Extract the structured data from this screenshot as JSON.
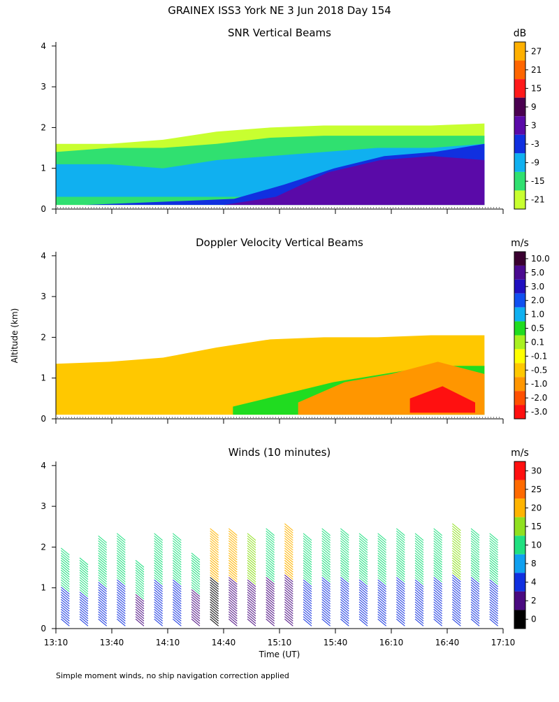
{
  "figure": {
    "title": "GRAINEX ISS3 York NE   3 Jun 2018 Day 154",
    "ylabel": "Altitude (km)",
    "xlabel": "Time (UT)",
    "footnote": "Simple moment winds, no ship navigation correction applied"
  },
  "chart_data": [
    {
      "type": "heatmap",
      "title": "SNR Vertical Beams",
      "unit": "dB",
      "x_ticks": [
        "13:10",
        "13:40",
        "14:10",
        "14:40",
        "15:10",
        "15:40",
        "16:10",
        "16:40",
        "17:10"
      ],
      "xlim": [
        "13:10",
        "17:10"
      ],
      "ylim": [
        0,
        4.1
      ],
      "y_ticks": [
        "0",
        "1",
        "2",
        "3",
        "4"
      ],
      "colorbar": {
        "labels": [
          "27",
          "21",
          "15",
          "9",
          "3",
          "-3",
          "-9",
          "-15",
          "-21"
        ],
        "colors": [
          "#ffb000",
          "#ff6600",
          "#ff1a1a",
          "#4a0050",
          "#5a0aa8",
          "#1030e0",
          "#10b0f0",
          "#30e070",
          "#c8ff30"
        ]
      },
      "layers": [
        {
          "from_time": "13:10",
          "to_time": "17:00",
          "bottom_km": [
            0.1,
            0.1,
            0.1,
            0.1,
            0.1,
            0.1,
            0.1,
            0.1,
            0.1
          ],
          "top_km": [
            1.6,
            1.6,
            1.7,
            1.9,
            2.0,
            2.05,
            2.05,
            2.05,
            2.1
          ],
          "color": "#c8ff30"
        },
        {
          "from_time": "13:10",
          "to_time": "17:00",
          "bottom_km": [
            0.1,
            0.1,
            0.1,
            0.1,
            0.1,
            0.1,
            0.1,
            0.1,
            0.1
          ],
          "top_km": [
            1.4,
            1.5,
            1.5,
            1.6,
            1.75,
            1.8,
            1.8,
            1.8,
            1.8
          ],
          "color": "#30e070"
        },
        {
          "from_time": "13:10",
          "to_time": "17:00",
          "bottom_km": [
            0.3,
            0.3,
            0.3,
            0.3,
            0.3,
            0.3,
            0.3,
            0.3,
            0.3
          ],
          "top_km": [
            1.1,
            1.1,
            1.0,
            1.2,
            1.3,
            1.4,
            1.5,
            1.5,
            1.6
          ],
          "color": "#10b0f0"
        },
        {
          "from_time": "13:25",
          "to_time": "17:00",
          "bottom_km": [
            0.1,
            0.1,
            0.1,
            0.1,
            0.1,
            0.1,
            0.1,
            0.1,
            0.1
          ],
          "top_km": [
            0.1,
            0.15,
            0.2,
            0.25,
            0.6,
            1.0,
            1.3,
            1.4,
            1.6
          ],
          "color": "#1030e0"
        },
        {
          "from_time": "14:40",
          "to_time": "17:00",
          "bottom_km": [
            0.1,
            0.1,
            0.1,
            0.1,
            0.1,
            0.1
          ],
          "top_km": [
            0.1,
            0.3,
            0.9,
            1.2,
            1.3,
            1.2
          ],
          "color": "#5a0aa8"
        }
      ]
    },
    {
      "type": "heatmap",
      "title": "Doppler Velocity Vertical Beams",
      "unit": "m/s",
      "x_ticks": [
        "13:10",
        "13:40",
        "14:10",
        "14:40",
        "15:10",
        "15:40",
        "16:10",
        "16:40",
        "17:10"
      ],
      "xlim": [
        "13:10",
        "17:10"
      ],
      "ylim": [
        0,
        4.1
      ],
      "y_ticks": [
        "0",
        "1",
        "2",
        "3",
        "4"
      ],
      "colorbar": {
        "labels": [
          "10.0",
          "5.0",
          "3.0",
          "2.0",
          "1.0",
          "0.5",
          "0.1",
          "-0.1",
          "-0.5",
          "-1.0",
          "-2.0",
          "-3.0"
        ],
        "colors": [
          "#3a0030",
          "#4a0a90",
          "#2010c0",
          "#1050f0",
          "#10b0f0",
          "#20dc20",
          "#a8f020",
          "#ffff00",
          "#ffc800",
          "#ff9600",
          "#ff5000",
          "#ff1010"
        ]
      },
      "layers": [
        {
          "from_time": "13:10",
          "to_time": "17:00",
          "bottom_km": [
            0.1,
            0.1,
            0.1,
            0.1,
            0.1,
            0.1,
            0.1,
            0.1,
            0.1
          ],
          "top_km": [
            1.35,
            1.4,
            1.5,
            1.75,
            1.95,
            2.0,
            2.0,
            2.05,
            2.05
          ],
          "color": "#ffc800"
        },
        {
          "from_time": "14:45",
          "to_time": "17:00",
          "bottom_km": [
            0.1,
            0.1,
            0.1,
            0.1,
            0.1,
            0.1
          ],
          "top_km": [
            0.3,
            0.6,
            0.9,
            1.1,
            1.3,
            1.3
          ],
          "color": "#20dc20"
        },
        {
          "from_time": "15:20",
          "to_time": "17:00",
          "bottom_km": [
            0.1,
            0.1,
            0.1,
            0.1,
            0.1
          ],
          "top_km": [
            0.4,
            0.9,
            1.1,
            1.4,
            1.1
          ],
          "color": "#ff9600"
        },
        {
          "from_time": "16:20",
          "to_time": "16:55",
          "bottom_km": [
            0.15,
            0.15,
            0.15
          ],
          "top_km": [
            0.5,
            0.8,
            0.4
          ],
          "color": "#ff1010"
        }
      ]
    },
    {
      "type": "scatter",
      "title": "Winds (10 minutes)",
      "unit": "m/s",
      "x_ticks": [
        "13:10",
        "13:40",
        "14:10",
        "14:40",
        "15:10",
        "15:40",
        "16:10",
        "16:40",
        "17:10"
      ],
      "xlim": [
        "13:10",
        "17:10"
      ],
      "ylim": [
        0,
        4.1
      ],
      "y_ticks": [
        "0",
        "1",
        "2",
        "3",
        "4"
      ],
      "colorbar": {
        "labels": [
          "30",
          "25",
          "20",
          "15",
          "10",
          "8",
          "4",
          "2",
          "0"
        ],
        "colors": [
          "#ff1010",
          "#ff6a00",
          "#ffb400",
          "#90e020",
          "#20e080",
          "#10a0f0",
          "#1030e0",
          "#4a0a80",
          "#000000"
        ]
      },
      "profiles": [
        {
          "time": "13:15",
          "top_km": 1.9,
          "color_low": "#1030e0",
          "color_high": "#20e080"
        },
        {
          "time": "13:25",
          "top_km": 1.7,
          "color_low": "#1030e0",
          "color_high": "#20e080"
        },
        {
          "time": "13:35",
          "top_km": 2.2,
          "color_low": "#1030e0",
          "color_high": "#20e080"
        },
        {
          "time": "13:45",
          "top_km": 2.3,
          "color_low": "#1030e0",
          "color_high": "#20e080"
        },
        {
          "time": "13:55",
          "top_km": 1.6,
          "color_low": "#4a0a80",
          "color_high": "#20e080"
        },
        {
          "time": "14:05",
          "top_km": 2.3,
          "color_low": "#1030e0",
          "color_high": "#20e080"
        },
        {
          "time": "14:15",
          "top_km": 2.3,
          "color_low": "#1030e0",
          "color_high": "#20e080"
        },
        {
          "time": "14:25",
          "top_km": 1.8,
          "color_low": "#4a0a80",
          "color_high": "#20e080"
        },
        {
          "time": "14:35",
          "top_km": 2.4,
          "color_low": "#000000",
          "color_high": "#ffb400"
        },
        {
          "time": "14:45",
          "top_km": 2.4,
          "color_low": "#4a0a80",
          "color_high": "#ffb400"
        },
        {
          "time": "14:55",
          "top_km": 2.3,
          "color_low": "#4a0a80",
          "color_high": "#90e020"
        },
        {
          "time": "15:05",
          "top_km": 2.4,
          "color_low": "#4a0a80",
          "color_high": "#20e080"
        },
        {
          "time": "15:15",
          "top_km": 2.5,
          "color_low": "#4a0a80",
          "color_high": "#ffb400"
        },
        {
          "time": "15:25",
          "top_km": 2.3,
          "color_low": "#1030e0",
          "color_high": "#20e080"
        },
        {
          "time": "15:35",
          "top_km": 2.4,
          "color_low": "#1030e0",
          "color_high": "#20e080"
        },
        {
          "time": "15:45",
          "top_km": 2.4,
          "color_low": "#1030e0",
          "color_high": "#20e080"
        },
        {
          "time": "15:55",
          "top_km": 2.3,
          "color_low": "#1030e0",
          "color_high": "#20e080"
        },
        {
          "time": "16:05",
          "top_km": 2.3,
          "color_low": "#1030e0",
          "color_high": "#20e080"
        },
        {
          "time": "16:15",
          "top_km": 2.4,
          "color_low": "#1030e0",
          "color_high": "#20e080"
        },
        {
          "time": "16:25",
          "top_km": 2.3,
          "color_low": "#1030e0",
          "color_high": "#20e080"
        },
        {
          "time": "16:35",
          "top_km": 2.4,
          "color_low": "#1030e0",
          "color_high": "#20e080"
        },
        {
          "time": "16:45",
          "top_km": 2.5,
          "color_low": "#1030e0",
          "color_high": "#90e020"
        },
        {
          "time": "16:55",
          "top_km": 2.4,
          "color_low": "#1030e0",
          "color_high": "#20e080"
        },
        {
          "time": "17:05",
          "top_km": 2.3,
          "color_low": "#1030e0",
          "color_high": "#20e080"
        }
      ]
    }
  ]
}
